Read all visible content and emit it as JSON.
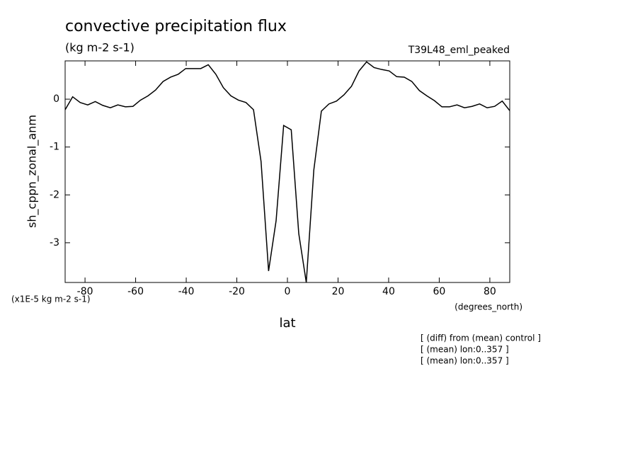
{
  "chart_data": {
    "type": "line",
    "title": "convective precipitation flux",
    "subtitle": "(kg m-2 s-1)",
    "run_label": "T39L48_eml_peaked",
    "y_label": "sh_cppn_zonal_anm",
    "y_units": "(x1E-5 kg m-2 s-1)",
    "x_label": "lat",
    "x_units": "(degrees_north)",
    "notes": [
      "[ (diff) from (mean) control ]",
      "[ (mean) lon:0..357 ]",
      "[ (mean) lon:0..357 ]"
    ],
    "x": [
      -87.86,
      -84.89,
      -81.91,
      -78.93,
      -75.95,
      -72.97,
      -69.99,
      -67.02,
      -64.04,
      -61.06,
      -58.08,
      -55.1,
      -52.13,
      -49.15,
      -46.17,
      -43.19,
      -40.21,
      -37.24,
      -34.26,
      -31.28,
      -28.3,
      -25.32,
      -22.34,
      -19.37,
      -16.39,
      -13.41,
      -10.43,
      -7.45,
      -4.48,
      -1.5,
      1.5,
      4.48,
      7.45,
      10.43,
      13.41,
      16.39,
      19.37,
      22.34,
      25.32,
      28.3,
      31.28,
      34.26,
      37.24,
      40.21,
      43.19,
      46.17,
      49.15,
      52.13,
      55.1,
      58.08,
      61.06,
      64.04,
      67.02,
      69.99,
      72.97,
      75.95,
      78.93,
      81.91,
      84.89,
      87.86
    ],
    "series": [
      {
        "color": "#000000",
        "values": [
          -0.22,
          0.05,
          -0.07,
          -0.12,
          -0.05,
          -0.13,
          -0.18,
          -0.12,
          -0.16,
          -0.15,
          -0.02,
          0.07,
          0.19,
          0.37,
          0.46,
          0.52,
          0.64,
          0.64,
          0.64,
          0.72,
          0.52,
          0.24,
          0.07,
          -0.02,
          -0.07,
          -0.22,
          -1.3,
          -3.59,
          -2.54,
          -0.55,
          -0.64,
          -2.81,
          -3.83,
          -1.48,
          -0.25,
          -0.1,
          -0.04,
          0.09,
          0.27,
          0.59,
          0.78,
          0.66,
          0.62,
          0.59,
          0.47,
          0.46,
          0.37,
          0.18,
          0.07,
          -0.03,
          -0.16,
          -0.16,
          -0.12,
          -0.18,
          -0.15,
          -0.1,
          -0.18,
          -0.15,
          -0.04,
          -0.24
        ]
      }
    ],
    "xlim": [
      -87.86,
      87.86
    ],
    "ylim": [
      -3.83,
      0.8
    ],
    "xticks": [
      -80,
      -60,
      -40,
      -20,
      0,
      20,
      40,
      60,
      80
    ],
    "yticks": [
      -3,
      -2,
      -1,
      0
    ]
  }
}
